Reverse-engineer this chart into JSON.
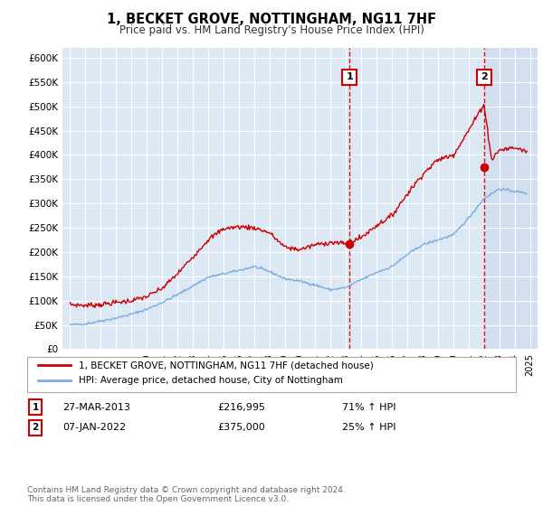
{
  "title": "1, BECKET GROVE, NOTTINGHAM, NG11 7HF",
  "subtitle": "Price paid vs. HM Land Registry's House Price Index (HPI)",
  "background_color": "#ffffff",
  "plot_bg_color": "#dde8f5",
  "grid_color": "#ffffff",
  "sale_color": "#cc0000",
  "hpi_color": "#7aade0",
  "ylim": [
    0,
    620000
  ],
  "yticks": [
    0,
    50000,
    100000,
    150000,
    200000,
    250000,
    300000,
    350000,
    400000,
    450000,
    500000,
    550000,
    600000
  ],
  "ytick_labels": [
    "£0",
    "£50K",
    "£100K",
    "£150K",
    "£200K",
    "£250K",
    "£300K",
    "£350K",
    "£400K",
    "£450K",
    "£500K",
    "£550K",
    "£600K"
  ],
  "sale1_x": 2013.23,
  "sale1_y": 216995,
  "sale2_x": 2022.02,
  "sale2_y": 375000,
  "annotation1_text": "1",
  "annotation2_text": "2",
  "legend_sale": "1, BECKET GROVE, NOTTINGHAM, NG11 7HF (detached house)",
  "legend_hpi": "HPI: Average price, detached house, City of Nottingham",
  "label1_date": "27-MAR-2013",
  "label1_price": "£216,995",
  "label1_hpi": "71% ↑ HPI",
  "label2_date": "07-JAN-2022",
  "label2_price": "£375,000",
  "label2_hpi": "25% ↑ HPI",
  "footer": "Contains HM Land Registry data © Crown copyright and database right 2024.\nThis data is licensed under the Open Government Licence v3.0.",
  "xmin": 1994.5,
  "xmax": 2025.5,
  "hatch_color": "#c8d8ee",
  "hatch_start": 2022.02
}
